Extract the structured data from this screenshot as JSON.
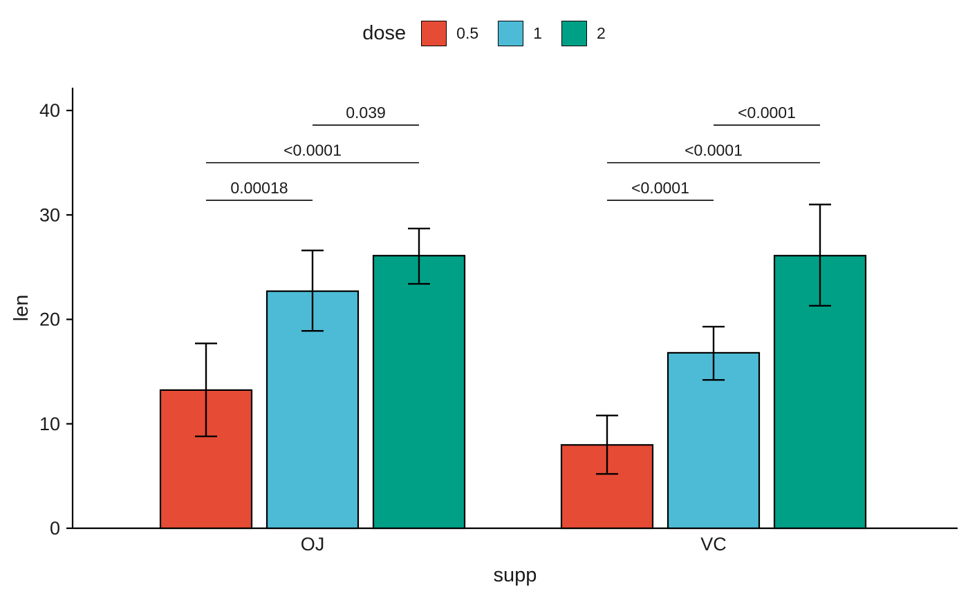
{
  "page": {
    "background": "#FFFFFF",
    "text_color": "#1A1A1A"
  },
  "legend": {
    "title": "dose",
    "position": "top",
    "entries": [
      {
        "label": "0.5",
        "color": "#E64B35"
      },
      {
        "label": "1",
        "color": "#4DBBD5"
      },
      {
        "label": "2",
        "color": "#00A087"
      }
    ]
  },
  "chart_data": {
    "type": "bar",
    "title": "",
    "xlabel": "supp",
    "ylabel": "len",
    "ylim": [
      0,
      42
    ],
    "yticks": [
      0,
      10,
      20,
      30,
      40
    ],
    "grid": false,
    "legend_position": "top",
    "categories": [
      "OJ",
      "VC"
    ],
    "series": [
      {
        "name": "0.5",
        "color": "#E64B35",
        "values": [
          13.23,
          7.98
        ],
        "error_low": [
          8.8,
          5.2
        ],
        "error_high": [
          17.7,
          10.8
        ]
      },
      {
        "name": "1",
        "color": "#4DBBD5",
        "values": [
          22.7,
          16.8
        ],
        "error_low": [
          18.9,
          14.2
        ],
        "error_high": [
          26.6,
          19.3
        ]
      },
      {
        "name": "2",
        "color": "#00A087",
        "values": [
          26.1,
          26.1
        ],
        "error_low": [
          23.4,
          21.3
        ],
        "error_high": [
          28.7,
          31.0
        ]
      }
    ],
    "significance": [
      {
        "category": "OJ",
        "from": 0,
        "to": 1,
        "label": "0.00018",
        "y": 31.4
      },
      {
        "category": "OJ",
        "from": 0,
        "to": 2,
        "label": "<0.0001",
        "y": 35.0
      },
      {
        "category": "OJ",
        "from": 1,
        "to": 2,
        "label": "0.039",
        "y": 38.6
      },
      {
        "category": "VC",
        "from": 0,
        "to": 1,
        "label": "<0.0001",
        "y": 31.4
      },
      {
        "category": "VC",
        "from": 0,
        "to": 2,
        "label": "<0.0001",
        "y": 35.0
      },
      {
        "category": "VC",
        "from": 1,
        "to": 2,
        "label": "<0.0001",
        "y": 38.6
      }
    ]
  }
}
